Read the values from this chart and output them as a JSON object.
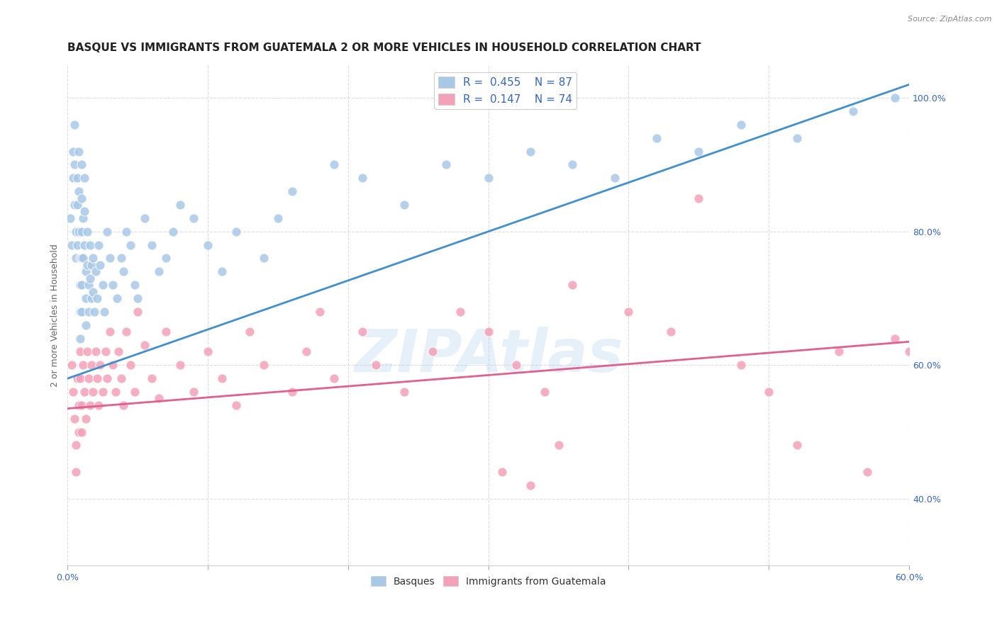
{
  "title": "BASQUE VS IMMIGRANTS FROM GUATEMALA 2 OR MORE VEHICLES IN HOUSEHOLD CORRELATION CHART",
  "source": "Source: ZipAtlas.com",
  "ylabel": "2 or more Vehicles in Household",
  "xlim": [
    0.0,
    0.6
  ],
  "ylim": [
    0.3,
    1.05
  ],
  "xticks": [
    0.0,
    0.1,
    0.2,
    0.3,
    0.4,
    0.5,
    0.6
  ],
  "xticklabels": [
    "0.0%",
    "",
    "",
    "",
    "",
    "",
    "60.0%"
  ],
  "yticks_right": [
    0.4,
    0.6,
    0.8,
    1.0
  ],
  "yticklabels_right": [
    "40.0%",
    "60.0%",
    "80.0%",
    "100.0%"
  ],
  "blue_R": 0.455,
  "blue_N": 87,
  "pink_R": 0.147,
  "pink_N": 74,
  "blue_color": "#a8c8e8",
  "pink_color": "#f4a0b8",
  "blue_line_color": "#4090d0",
  "pink_line_color": "#e06090",
  "legend_R_color": "#3366cc",
  "watermark": "ZIPAtlas",
  "blue_trend_x0": 0.0,
  "blue_trend_y0": 0.58,
  "blue_trend_x1": 0.6,
  "blue_trend_y1": 1.02,
  "pink_trend_x0": 0.0,
  "pink_trend_y0": 0.535,
  "pink_trend_x1": 0.6,
  "pink_trend_y1": 0.635,
  "background_color": "#ffffff",
  "grid_color": "#dddddd",
  "title_fontsize": 11,
  "axis_label_fontsize": 9,
  "tick_fontsize": 9,
  "blue_scatter_x": [
    0.002,
    0.003,
    0.004,
    0.004,
    0.005,
    0.005,
    0.005,
    0.006,
    0.006,
    0.007,
    0.007,
    0.007,
    0.008,
    0.008,
    0.008,
    0.009,
    0.009,
    0.009,
    0.009,
    0.01,
    0.01,
    0.01,
    0.01,
    0.01,
    0.01,
    0.011,
    0.011,
    0.012,
    0.012,
    0.012,
    0.013,
    0.013,
    0.013,
    0.014,
    0.014,
    0.015,
    0.015,
    0.016,
    0.016,
    0.017,
    0.017,
    0.018,
    0.018,
    0.019,
    0.02,
    0.021,
    0.022,
    0.023,
    0.025,
    0.026,
    0.028,
    0.03,
    0.032,
    0.035,
    0.038,
    0.04,
    0.042,
    0.045,
    0.048,
    0.05,
    0.055,
    0.06,
    0.065,
    0.07,
    0.075,
    0.08,
    0.09,
    0.1,
    0.11,
    0.12,
    0.14,
    0.15,
    0.16,
    0.19,
    0.21,
    0.24,
    0.27,
    0.3,
    0.33,
    0.36,
    0.39,
    0.42,
    0.45,
    0.48,
    0.52,
    0.56,
    0.59
  ],
  "blue_scatter_y": [
    0.82,
    0.78,
    0.92,
    0.88,
    0.96,
    0.9,
    0.84,
    0.8,
    0.76,
    0.88,
    0.84,
    0.78,
    0.92,
    0.86,
    0.8,
    0.76,
    0.72,
    0.68,
    0.64,
    0.9,
    0.85,
    0.8,
    0.76,
    0.72,
    0.68,
    0.82,
    0.76,
    0.88,
    0.83,
    0.78,
    0.74,
    0.7,
    0.66,
    0.8,
    0.75,
    0.72,
    0.68,
    0.78,
    0.73,
    0.75,
    0.7,
    0.76,
    0.71,
    0.68,
    0.74,
    0.7,
    0.78,
    0.75,
    0.72,
    0.68,
    0.8,
    0.76,
    0.72,
    0.7,
    0.76,
    0.74,
    0.8,
    0.78,
    0.72,
    0.7,
    0.82,
    0.78,
    0.74,
    0.76,
    0.8,
    0.84,
    0.82,
    0.78,
    0.74,
    0.8,
    0.76,
    0.82,
    0.86,
    0.9,
    0.88,
    0.84,
    0.9,
    0.88,
    0.92,
    0.9,
    0.88,
    0.94,
    0.92,
    0.96,
    0.94,
    0.98,
    1.0
  ],
  "pink_scatter_x": [
    0.003,
    0.004,
    0.005,
    0.006,
    0.006,
    0.007,
    0.008,
    0.008,
    0.009,
    0.009,
    0.01,
    0.01,
    0.011,
    0.012,
    0.013,
    0.014,
    0.015,
    0.016,
    0.017,
    0.018,
    0.02,
    0.021,
    0.022,
    0.023,
    0.025,
    0.027,
    0.028,
    0.03,
    0.032,
    0.034,
    0.036,
    0.038,
    0.04,
    0.042,
    0.045,
    0.048,
    0.05,
    0.055,
    0.06,
    0.065,
    0.07,
    0.08,
    0.09,
    0.1,
    0.11,
    0.12,
    0.13,
    0.14,
    0.16,
    0.17,
    0.18,
    0.19,
    0.21,
    0.22,
    0.24,
    0.26,
    0.28,
    0.3,
    0.32,
    0.34,
    0.36,
    0.4,
    0.43,
    0.45,
    0.48,
    0.5,
    0.52,
    0.55,
    0.57,
    0.59,
    0.31,
    0.33,
    0.6,
    0.35
  ],
  "pink_scatter_y": [
    0.6,
    0.56,
    0.52,
    0.48,
    0.44,
    0.58,
    0.54,
    0.5,
    0.62,
    0.58,
    0.54,
    0.5,
    0.6,
    0.56,
    0.52,
    0.62,
    0.58,
    0.54,
    0.6,
    0.56,
    0.62,
    0.58,
    0.54,
    0.6,
    0.56,
    0.62,
    0.58,
    0.65,
    0.6,
    0.56,
    0.62,
    0.58,
    0.54,
    0.65,
    0.6,
    0.56,
    0.68,
    0.63,
    0.58,
    0.55,
    0.65,
    0.6,
    0.56,
    0.62,
    0.58,
    0.54,
    0.65,
    0.6,
    0.56,
    0.62,
    0.68,
    0.58,
    0.65,
    0.6,
    0.56,
    0.62,
    0.68,
    0.65,
    0.6,
    0.56,
    0.72,
    0.68,
    0.65,
    0.85,
    0.6,
    0.56,
    0.48,
    0.62,
    0.44,
    0.64,
    0.44,
    0.42,
    0.62,
    0.48
  ]
}
